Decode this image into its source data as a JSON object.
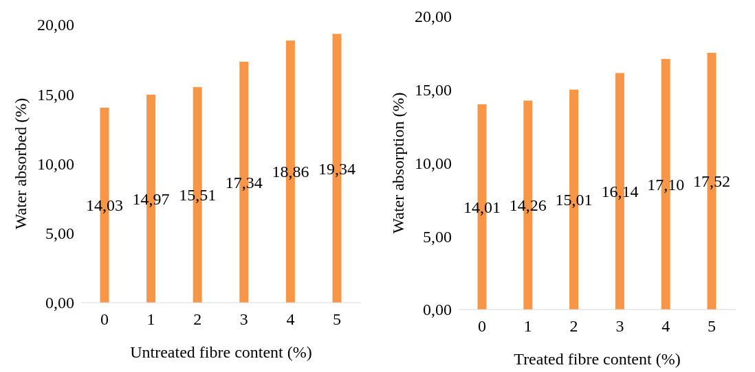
{
  "chart_data": [
    {
      "type": "bar",
      "xlabel": "Untreated fibre content (%)",
      "ylabel": "Water absorbed (%)",
      "categories": [
        "0",
        "1",
        "2",
        "3",
        "4",
        "5"
      ],
      "values": [
        14.03,
        14.97,
        15.51,
        17.34,
        18.86,
        19.34
      ],
      "value_labels": [
        "14,03",
        "14,97",
        "15,51",
        "17,34",
        "18,86",
        "19,34"
      ],
      "color": "#f79646",
      "ylim": [
        0,
        20
      ],
      "yticks": [
        {
          "value": 0,
          "label": "0,00"
        },
        {
          "value": 5,
          "label": "5,00"
        },
        {
          "value": 10,
          "label": "10,00"
        },
        {
          "value": 15,
          "label": "15,00"
        },
        {
          "value": 20,
          "label": "20,00"
        }
      ],
      "grid": false
    },
    {
      "type": "bar",
      "xlabel": "Treated fibre content (%)",
      "ylabel": "Water absorption (%)",
      "categories": [
        "0",
        "1",
        "2",
        "3",
        "4",
        "5"
      ],
      "values": [
        14.01,
        14.26,
        15.01,
        16.14,
        17.1,
        17.52
      ],
      "value_labels": [
        "14,01",
        "14,26",
        "15,01",
        "16,14",
        "17,10",
        "17,52"
      ],
      "color": "#f79646",
      "ylim": [
        0,
        20
      ],
      "yticks": [
        {
          "value": 0,
          "label": "0,00"
        },
        {
          "value": 5,
          "label": "5,00"
        },
        {
          "value": 10,
          "label": "10,00"
        },
        {
          "value": 15,
          "label": "15,00"
        },
        {
          "value": 20,
          "label": "20,00"
        }
      ],
      "grid": false
    }
  ]
}
